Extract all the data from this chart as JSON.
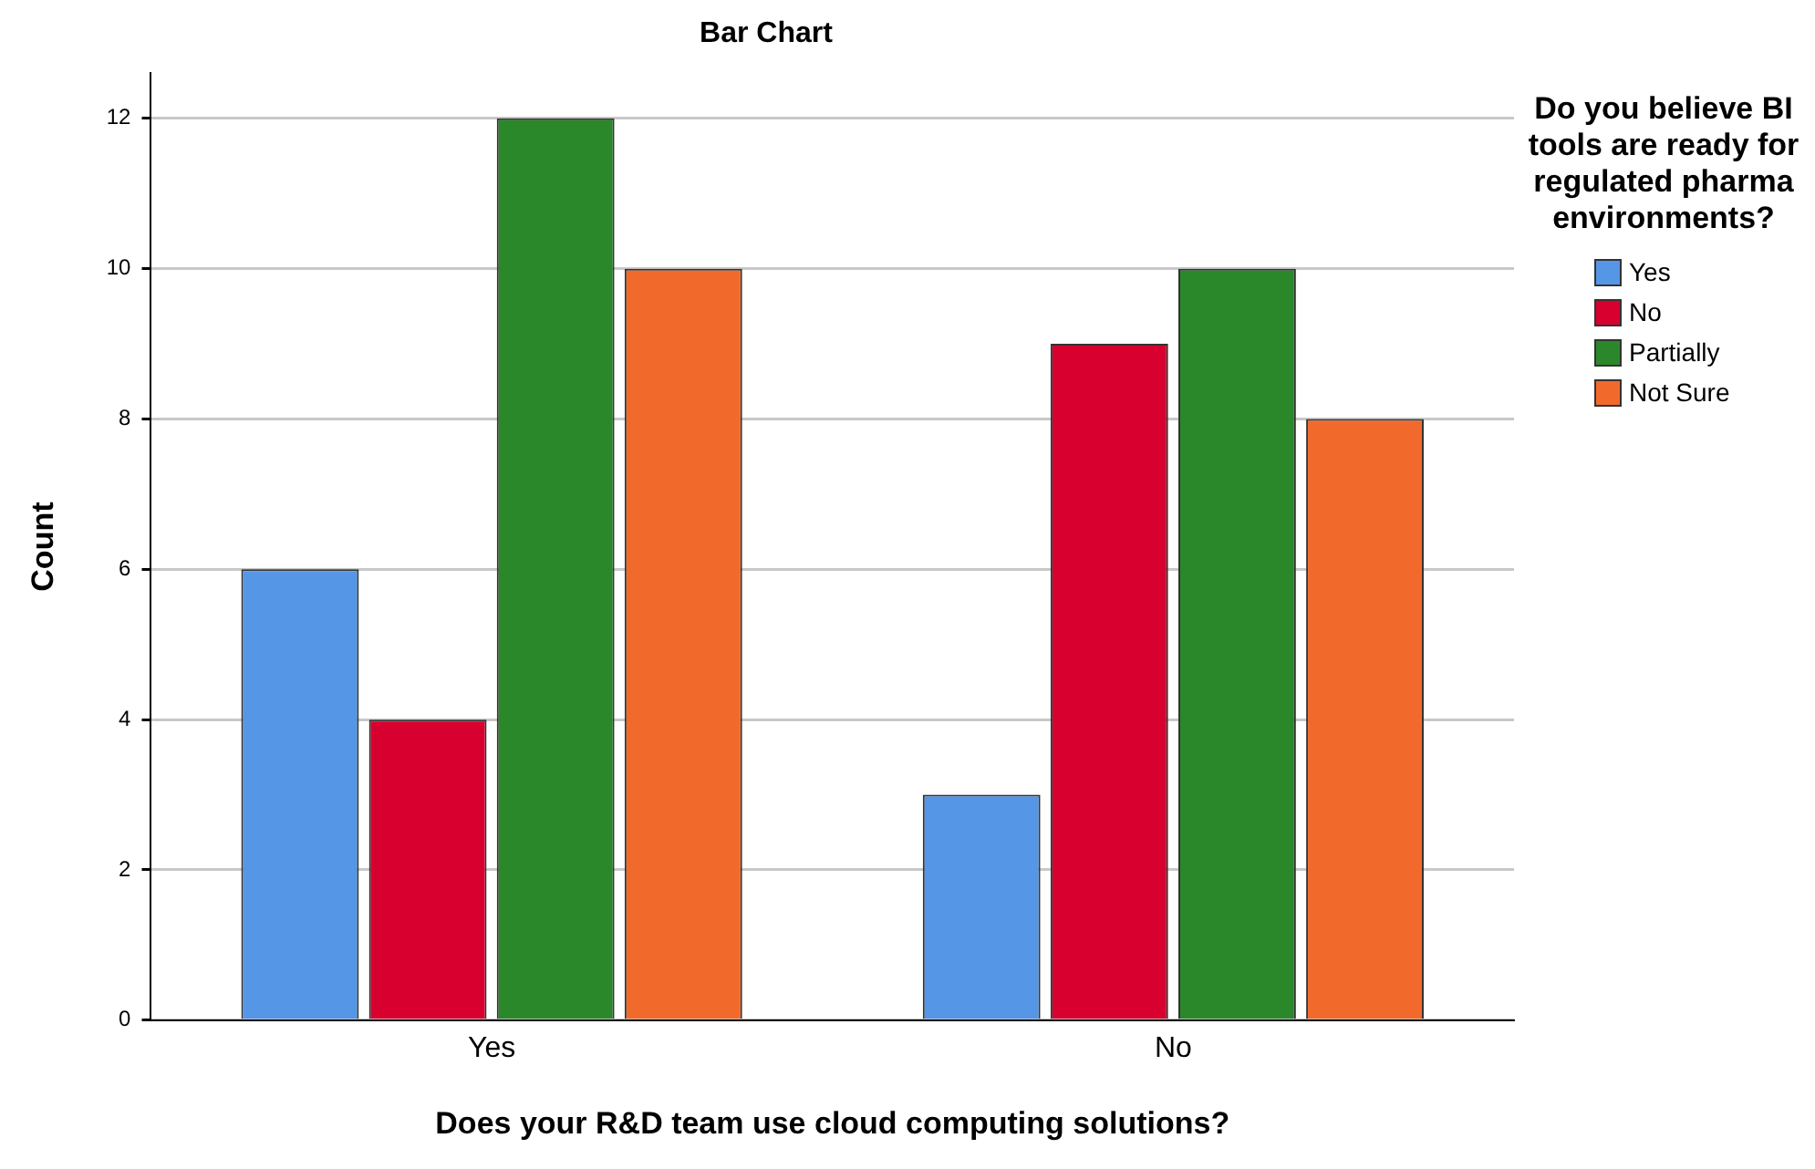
{
  "chart_data": {
    "type": "bar",
    "title": "Bar Chart",
    "xlabel": "Does your R&D team use cloud computing solutions?",
    "ylabel": "Count",
    "legend_title": "Do you believe BI tools are ready for regulated pharma environments?",
    "categories": [
      "Yes",
      "No"
    ],
    "series": [
      {
        "name": "Yes",
        "color": "#5596e6",
        "values": [
          6,
          3
        ]
      },
      {
        "name": "No",
        "color": "#d7002f",
        "values": [
          4,
          9
        ]
      },
      {
        "name": "Partially",
        "color": "#2a882a",
        "values": [
          12,
          10
        ]
      },
      {
        "name": "Not Sure",
        "color": "#f26a2b",
        "values": [
          10,
          8
        ]
      }
    ],
    "ylim": [
      0,
      12.6
    ],
    "yticks": [
      0,
      2,
      4,
      6,
      8,
      10,
      12
    ],
    "grid": "y",
    "legend": "right"
  }
}
